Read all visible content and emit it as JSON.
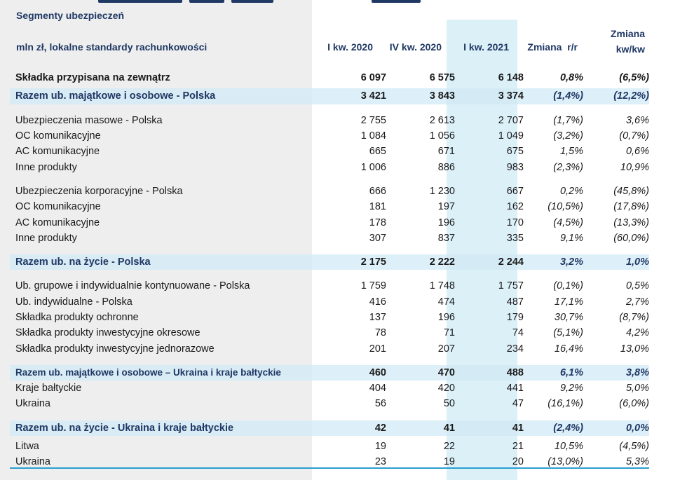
{
  "table": {
    "title": "Segmenty ubezpieczeń",
    "units": "mln zł, lokalne standardy rachunkowości",
    "columns": [
      "I kw. 2020",
      "IV kw. 2020",
      "I kw. 2021",
      "Zmiana  r/r",
      "Zmiana kw/kw"
    ],
    "columns_zmiana_kwkw_line1": "Zmiana",
    "columns_zmiana_kwkw_line2": "kw/kw",
    "rows": [
      {
        "label": "Składka przypisana na zewnątrz",
        "v": [
          "6 097",
          "6 575",
          "6 148",
          "0,8%",
          "(6,5%)"
        ],
        "style": "bold"
      },
      {
        "label": "Razem ub. majątkowe i osobowe - Polska",
        "v": [
          "3 421",
          "3 843",
          "3 374",
          "(1,4%)",
          "(12,2%)"
        ],
        "style": "section"
      },
      {
        "label": "Ubezpieczenia masowe - Polska",
        "v": [
          "2 755",
          "2 613",
          "2 707",
          "(1,7%)",
          "3,6%"
        ],
        "style": "normal"
      },
      {
        "label": "OC komunikacyjne",
        "v": [
          "1 084",
          "1 056",
          "1 049",
          "(3,2%)",
          "(0,7%)"
        ],
        "style": "normal"
      },
      {
        "label": "AC komunikacyjne",
        "v": [
          "665",
          "671",
          "675",
          "1,5%",
          "0,6%"
        ],
        "style": "normal"
      },
      {
        "label": "Inne produkty",
        "v": [
          "1 006",
          "886",
          "983",
          "(2,3%)",
          "10,9%"
        ],
        "style": "normal"
      },
      {
        "label": "Ubezpieczenia korporacyjne - Polska",
        "v": [
          "666",
          "1 230",
          "667",
          "0,2%",
          "(45,8%)"
        ],
        "style": "normal"
      },
      {
        "label": "OC komunikacyjne",
        "v": [
          "181",
          "197",
          "162",
          "(10,5%)",
          "(17,8%)"
        ],
        "style": "normal"
      },
      {
        "label": "AC komunikacyjne",
        "v": [
          "178",
          "196",
          "170",
          "(4,5%)",
          "(13,3%)"
        ],
        "style": "normal"
      },
      {
        "label": "Inne produkty",
        "v": [
          "307",
          "837",
          "335",
          "9,1%",
          "(60,0%)"
        ],
        "style": "normal"
      },
      {
        "label": "Razem ub. na życie - Polska",
        "v": [
          "2 175",
          "2 222",
          "2 244",
          "3,2%",
          "1,0%"
        ],
        "style": "section"
      },
      {
        "label": "Ub. grupowe i indywidualnie kontynuowane - Polska",
        "v": [
          "1 759",
          "1 748",
          "1 757",
          "(0,1%)",
          "0,5%"
        ],
        "style": "normal"
      },
      {
        "label": "Ub. indywidualne - Polska",
        "v": [
          "416",
          "474",
          "487",
          "17,1%",
          "2,7%"
        ],
        "style": "normal"
      },
      {
        "label": "Składka produkty ochronne",
        "v": [
          "137",
          "196",
          "179",
          "30,7%",
          "(8,7%)"
        ],
        "style": "normal"
      },
      {
        "label": "Składka produkty inwestycyjne okresowe",
        "v": [
          "78",
          "71",
          "74",
          "(5,1%)",
          "4,2%"
        ],
        "style": "normal"
      },
      {
        "label": "Składka produkty inwestycyjne jednorazowe",
        "v": [
          "201",
          "207",
          "234",
          "16,4%",
          "13,0%"
        ],
        "style": "normal"
      },
      {
        "label": "Razem ub. majątkowe i osobowe – Ukraina i kraje bałtyckie",
        "v": [
          "460",
          "470",
          "488",
          "6,1%",
          "3,8%"
        ],
        "style": "section"
      },
      {
        "label": "Kraje bałtyckie",
        "v": [
          "404",
          "420",
          "441",
          "9,2%",
          "5,0%"
        ],
        "style": "normal"
      },
      {
        "label": "Ukraina",
        "v": [
          "56",
          "50",
          "47",
          "(16,1%)",
          "(6,0%)"
        ],
        "style": "normal"
      },
      {
        "label": "Razem ub. na życie - Ukraina i kraje bałtyckie",
        "v": [
          "42",
          "41",
          "41",
          "(2,4%)",
          "0,0%"
        ],
        "style": "section"
      },
      {
        "label": "Litwa",
        "v": [
          "19",
          "22",
          "21",
          "10,5%",
          "(4,5%)"
        ],
        "style": "normal"
      },
      {
        "label": "Ukraina",
        "v": [
          "23",
          "19",
          "20",
          "(13,0%)",
          "5,3%"
        ],
        "style": "normal"
      }
    ]
  },
  "colors": {
    "heading": "#1f3864",
    "section_bg": "#d1eaf6",
    "highlight_col": "#dcf0f8",
    "gray_bg": "#eeeeee",
    "rule": "#2a9fcf"
  }
}
